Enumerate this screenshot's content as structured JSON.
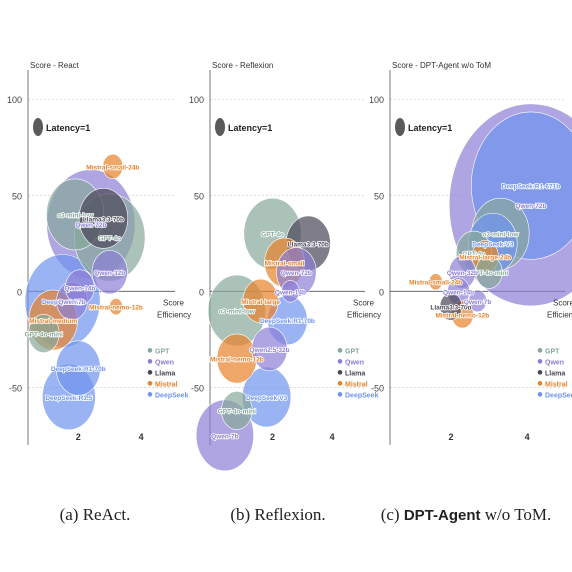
{
  "figure": {
    "captions": [
      {
        "prefix": "(a) ",
        "bold": "",
        "text": "ReAct."
      },
      {
        "prefix": "(b) ",
        "bold": "",
        "text": "Reflexion."
      },
      {
        "prefix": "(c) ",
        "bold": "DPT-Agent",
        "text": " w/o ToM."
      }
    ]
  },
  "colors": {
    "GPT": "#86a89a",
    "Qwen": "#8b7fd6",
    "Llama": "#4a4658",
    "Mistral": "#e8822a",
    "DeepSeek": "#6f93ee"
  },
  "chart_data": [
    {
      "type": "scatter",
      "title": "Score - React",
      "xlabel": "Efficiency",
      "ylabel": "Score",
      "xlim": [
        0.4,
        4.6
      ],
      "ylim": [
        -80,
        110
      ],
      "yticks": [
        100,
        50,
        0,
        -50
      ],
      "xticks": [
        2,
        4
      ],
      "latency_label": "Latency=1",
      "legend": [
        "GPT",
        "Qwen",
        "Llama",
        "Mistral",
        "DeepSeek"
      ],
      "points": [
        {
          "label": "Qwen-72b",
          "family": "Qwen",
          "x": 2.4,
          "y": 35,
          "size": 2.0
        },
        {
          "label": "GPT-4o",
          "family": "GPT",
          "x": 3.0,
          "y": 28,
          "size": 1.6
        },
        {
          "label": "Llama3.3-70b",
          "family": "Llama",
          "x": 2.8,
          "y": 38,
          "size": 1.1
        },
        {
          "label": "Mistral-small-24b",
          "family": "Mistral",
          "x": 3.1,
          "y": 65,
          "size": 0.45
        },
        {
          "label": "o3-mini-low",
          "family": "GPT",
          "x": 1.9,
          "y": 40,
          "size": 1.3
        },
        {
          "label": "Qwen-32b",
          "family": "Qwen",
          "x": 3.0,
          "y": 10,
          "size": 0.8
        },
        {
          "label": "DeepSeek-V3",
          "family": "DeepSeek",
          "x": 1.5,
          "y": -5,
          "size": 1.7
        },
        {
          "label": "Mistral-medium",
          "family": "Mistral",
          "x": 1.2,
          "y": -15,
          "size": 1.1
        },
        {
          "label": "Qwen-7b",
          "family": "Qwen",
          "x": 1.8,
          "y": -5,
          "size": 0.7
        },
        {
          "label": "Qwen-14b",
          "family": "Qwen",
          "x": 2.05,
          "y": 2,
          "size": 0.65
        },
        {
          "label": "Mistral-nemo-12b",
          "family": "Mistral",
          "x": 3.2,
          "y": -8,
          "size": 0.3
        },
        {
          "label": "GPT-4o-mini",
          "family": "GPT",
          "x": 0.9,
          "y": -22,
          "size": 0.7
        },
        {
          "label": "DeepSeek-R1-70b",
          "family": "DeepSeek",
          "x": 2.0,
          "y": -40,
          "size": 1.0
        },
        {
          "label": "DeepSeek-R1.5",
          "family": "DeepSeek",
          "x": 1.7,
          "y": -55,
          "size": 1.2
        }
      ]
    },
    {
      "type": "scatter",
      "title": "Score - Reflexion",
      "xlabel": "Efficiency",
      "ylabel": "Score",
      "xlim": [
        -0.1,
        4.6
      ],
      "ylim": [
        -80,
        110
      ],
      "yticks": [
        100,
        50,
        0,
        -50
      ],
      "xticks": [
        2,
        4
      ],
      "latency_label": "Latency=1",
      "legend": [
        "GPT",
        "Qwen",
        "Llama",
        "Mistral",
        "DeepSeek"
      ],
      "points": [
        {
          "label": "GPT-4o",
          "family": "GPT",
          "x": 2.0,
          "y": 30,
          "size": 1.3
        },
        {
          "label": "Llama3.3-70b",
          "family": "Llama",
          "x": 3.2,
          "y": 25,
          "size": 1.0
        },
        {
          "label": "Mistral-small",
          "family": "Mistral",
          "x": 2.4,
          "y": 15,
          "size": 0.9
        },
        {
          "label": "Qwen-72b",
          "family": "Qwen",
          "x": 2.8,
          "y": 10,
          "size": 0.9
        },
        {
          "label": "o3-mini-low",
          "family": "GPT",
          "x": 0.8,
          "y": -10,
          "size": 1.3
        },
        {
          "label": "Mistral-large",
          "family": "Mistral",
          "x": 1.6,
          "y": -5,
          "size": 0.8
        },
        {
          "label": "Qwen-14b",
          "family": "Qwen",
          "x": 2.6,
          "y": 0,
          "size": 0.4
        },
        {
          "label": "DeepSeek-R1-70b",
          "family": "DeepSeek",
          "x": 2.5,
          "y": -15,
          "size": 0.9
        },
        {
          "label": "Qwen2.5-32b",
          "family": "Qwen",
          "x": 1.9,
          "y": -30,
          "size": 0.8
        },
        {
          "label": "Mistral-nemo-12b",
          "family": "Mistral",
          "x": 0.8,
          "y": -35,
          "size": 0.9
        },
        {
          "label": "DeepSeek-V3",
          "family": "DeepSeek",
          "x": 1.8,
          "y": -55,
          "size": 1.1
        },
        {
          "label": "GPT-4o-mini",
          "family": "GPT",
          "x": 0.8,
          "y": -62,
          "size": 0.7
        },
        {
          "label": "Qwen-7b",
          "family": "Qwen",
          "x": 0.4,
          "y": -75,
          "size": 1.3
        }
      ]
    },
    {
      "type": "scatter",
      "title": "Score - DPT-Agent w/o ToM",
      "xlabel": "Efficiency",
      "ylabel": "Score",
      "xlim": [
        0.4,
        4.6
      ],
      "ylim": [
        -80,
        110
      ],
      "yticks": [
        100,
        50,
        0,
        -50
      ],
      "xticks": [
        2,
        4
      ],
      "latency_label": "Latency=1",
      "legend": [
        "GPT",
        "Qwen",
        "Llama",
        "Mistral",
        "DeepSeek"
      ],
      "points": [
        {
          "label": "Qwen-72b",
          "family": "Qwen",
          "x": 4.1,
          "y": 45,
          "size": 3.7
        },
        {
          "label": "DeepSeek-R1-671b",
          "family": "DeepSeek",
          "x": 4.1,
          "y": 55,
          "size": 2.7
        },
        {
          "label": "o3-mini-low",
          "family": "GPT",
          "x": 3.3,
          "y": 30,
          "size": 1.3
        },
        {
          "label": "DeepSeek-V3",
          "family": "DeepSeek",
          "x": 3.1,
          "y": 25,
          "size": 1.1
        },
        {
          "label": "Mistral-large-24b",
          "family": "Mistral",
          "x": 2.9,
          "y": 18,
          "size": 0.6
        },
        {
          "label": "GPT-4o-mini",
          "family": "GPT",
          "x": 3.0,
          "y": 10,
          "size": 0.6
        },
        {
          "label": "GPT-4o",
          "family": "GPT",
          "x": 2.6,
          "y": 20,
          "size": 0.8
        },
        {
          "label": "Mistral-small-24b",
          "family": "Mistral",
          "x": 1.6,
          "y": 5,
          "size": 0.3
        },
        {
          "label": "Qwen-32b",
          "family": "Qwen",
          "x": 2.3,
          "y": 10,
          "size": 0.6
        },
        {
          "label": "Qwen-14b",
          "family": "Qwen",
          "x": 2.2,
          "y": 0,
          "size": 0.5
        },
        {
          "label": "Mistral-nemo-12b",
          "family": "Mistral",
          "x": 2.3,
          "y": -12,
          "size": 0.5
        },
        {
          "label": "Llama3.3-70b",
          "family": "Llama",
          "x": 2.0,
          "y": -8,
          "size": 0.5
        },
        {
          "label": "Qwen-7b",
          "family": "Qwen",
          "x": 2.7,
          "y": -5,
          "size": 0.4
        }
      ]
    }
  ]
}
